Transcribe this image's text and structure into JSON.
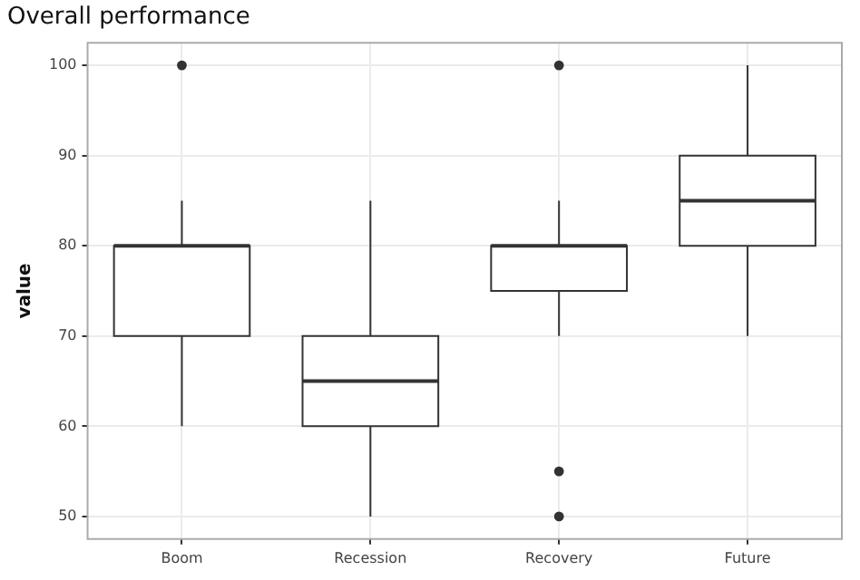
{
  "chart_data": {
    "type": "box",
    "title": "Overall performance",
    "ylabel": "value",
    "categories": [
      "Boom",
      "Recession",
      "Recovery",
      "Future"
    ],
    "boxes": [
      {
        "low": 60,
        "q1": 70,
        "median": 80,
        "q3": 80,
        "high": 85,
        "outliers": [
          100
        ]
      },
      {
        "low": 50,
        "q1": 60,
        "median": 65,
        "q3": 70,
        "high": 85
      },
      {
        "low": 70,
        "q1": 75,
        "median": 80,
        "q3": 80,
        "high": 85,
        "outliers": [
          100,
          55,
          50
        ]
      },
      {
        "low": 70,
        "q1": 80,
        "median": 85,
        "q3": 90,
        "high": 100
      }
    ],
    "color": "#ffffff",
    "ylim": [
      47.5,
      102.5
    ],
    "yticks": [
      50,
      60,
      70,
      80,
      90,
      100
    ],
    "grid": true,
    "legend": false
  }
}
